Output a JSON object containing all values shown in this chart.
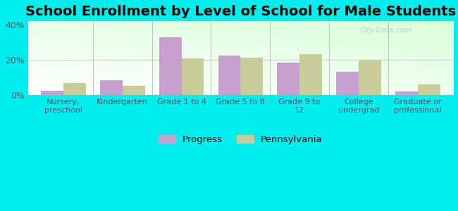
{
  "title": "School Enrollment by Level of School for Male Students",
  "categories": [
    "Nursery,\npreschool",
    "Kindergarten",
    "Grade 1 to 4",
    "Grade 5 to 8",
    "Grade 9 to\n12",
    "College\nundergrad",
    "Graduate or\nprofessional"
  ],
  "progress_values": [
    2.5,
    8.5,
    33.0,
    22.5,
    18.5,
    13.5,
    2.0
  ],
  "pennsylvania_values": [
    7.0,
    5.5,
    21.0,
    21.5,
    23.5,
    20.0,
    6.0
  ],
  "progress_color": "#c8a0d0",
  "pennsylvania_color": "#c8cc99",
  "background_color": "#00eeee",
  "ylim": [
    0,
    42
  ],
  "yticks": [
    0,
    20,
    40
  ],
  "ytick_labels": [
    "0%",
    "20%",
    "40%"
  ],
  "legend_labels": [
    "Progress",
    "Pennsylvania"
  ],
  "title_fontsize": 14,
  "bar_width": 0.38,
  "watermark": "City-Data.com",
  "watermark_color": "#bbcccc",
  "grid_color": "#cccccc",
  "tick_label_color": "#555566",
  "spine_color": "#aaaaaa"
}
